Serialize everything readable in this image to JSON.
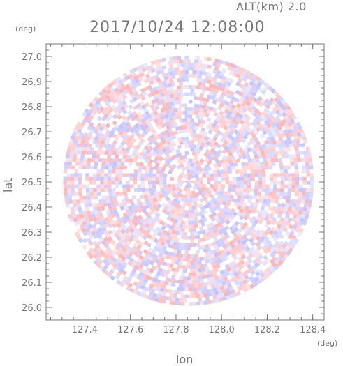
{
  "chart_data": {
    "type": "heatmap",
    "title": "2017/10/24 12:08:00",
    "subtitle": "ALT(km) 2.0",
    "xlabel": "lon",
    "ylabel": "lat",
    "x_unit": "(deg)",
    "y_unit": "(deg)",
    "xlim": [
      127.23,
      128.45
    ],
    "ylim": [
      25.95,
      27.05
    ],
    "x_ticks": [
      "127.4",
      "127.6",
      "127.8",
      "128.0",
      "128.2",
      "128.4"
    ],
    "y_ticks": [
      "26.0",
      "26.1",
      "26.2",
      "26.3",
      "26.4",
      "26.5",
      "26.6",
      "26.7",
      "26.8",
      "26.9",
      "27.0"
    ],
    "center": {
      "lon": 127.855,
      "lat": 26.505
    },
    "range_deg": 0.55,
    "colors": {
      "positive": "#ffb0b0",
      "negative": "#c0c0ff",
      "neutral": "#ffffff",
      "axis": "#777777"
    },
    "grid": false
  }
}
